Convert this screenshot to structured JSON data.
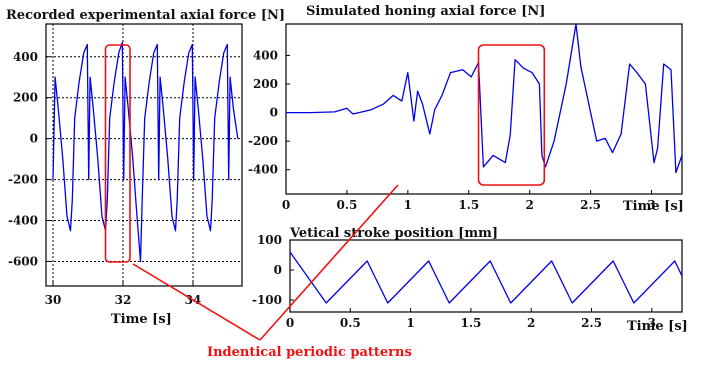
{
  "colors": {
    "series": "#0000ee",
    "highlight": "#ee1111",
    "axis": "#000000",
    "grid": "#000000",
    "background": "#ffffff"
  },
  "annotation": {
    "text": "Indentical periodic patterns"
  },
  "chart_data": [
    {
      "id": "recorded",
      "type": "line",
      "title": "Recorded experimental axial force [N]",
      "xlabel": "Time [s]",
      "ylabel": "",
      "xlim": [
        29.8,
        35.4
      ],
      "ylim": [
        -720,
        560
      ],
      "grid": true,
      "grid_style": "dotted",
      "xticks": [
        30,
        32,
        34
      ],
      "yticks": [
        400,
        200,
        0,
        -200,
        -400,
        -600
      ],
      "highlight_range": [
        31.5,
        32.2
      ],
      "series": [
        {
          "values_note_pattern_period_s": null,
          "x": [
            30.0,
            30.06,
            30.15,
            30.28,
            30.4,
            30.5,
            30.55,
            30.62,
            30.75,
            30.88,
            30.98,
            31.02,
            31.06,
            31.15,
            31.28,
            31.4,
            31.5,
            31.55,
            31.62,
            31.75,
            31.88,
            31.98,
            32.02,
            32.06,
            32.15,
            32.28,
            32.4,
            32.5,
            32.55,
            32.62,
            32.75,
            32.88,
            32.98,
            33.02,
            33.06,
            33.15,
            33.28,
            33.4,
            33.5,
            33.55,
            33.62,
            33.75,
            33.88,
            33.98,
            34.02,
            34.06,
            34.15,
            34.28,
            34.4,
            34.5,
            34.55,
            34.62,
            34.75,
            34.88,
            34.98,
            35.02,
            35.06,
            35.15,
            35.28
          ],
          "y": [
            -200,
            300,
            150,
            -100,
            -380,
            -450,
            -300,
            100,
            280,
            420,
            460,
            -200,
            300,
            150,
            -100,
            -380,
            -450,
            -300,
            100,
            280,
            420,
            470,
            -200,
            300,
            150,
            -100,
            -380,
            -600,
            -300,
            100,
            280,
            420,
            460,
            -200,
            300,
            150,
            -100,
            -380,
            -450,
            -300,
            100,
            280,
            420,
            460,
            -200,
            300,
            150,
            -100,
            -380,
            -450,
            -300,
            100,
            280,
            420,
            460,
            -200,
            300,
            150,
            0
          ]
        }
      ]
    },
    {
      "id": "simulated",
      "type": "line",
      "title": "Simulated honing axial force [N]",
      "xlabel": "Time [s]",
      "ylabel": "",
      "xlim": [
        0,
        3.25
      ],
      "ylim": [
        -570,
        620
      ],
      "grid": false,
      "xticks": [
        0,
        0.5,
        1,
        1.5,
        2,
        2.5,
        3
      ],
      "xtick_labels": [
        "0",
        "0.5",
        "1",
        "1.5",
        "2",
        "2.5",
        "3"
      ],
      "yticks": [
        400,
        200,
        0,
        -200,
        -400
      ],
      "highlight_range": [
        1.58,
        2.12
      ],
      "series": [
        {
          "x": [
            0.0,
            0.2,
            0.4,
            0.5,
            0.55,
            0.7,
            0.8,
            0.88,
            0.95,
            1.0,
            1.05,
            1.08,
            1.12,
            1.18,
            1.22,
            1.28,
            1.35,
            1.45,
            1.52,
            1.58,
            1.62,
            1.7,
            1.8,
            1.84,
            1.88,
            1.95,
            2.02,
            2.08,
            2.1,
            2.13,
            2.2,
            2.3,
            2.38,
            2.42,
            2.48,
            2.55,
            2.62,
            2.68,
            2.75,
            2.82,
            2.88,
            2.95,
            3.02,
            3.05,
            3.1,
            3.16,
            3.2,
            3.25
          ],
          "y": [
            0,
            0,
            5,
            30,
            -10,
            20,
            60,
            120,
            80,
            280,
            -60,
            150,
            60,
            -150,
            20,
            120,
            280,
            300,
            250,
            350,
            -380,
            -300,
            -350,
            -160,
            370,
            310,
            280,
            200,
            -300,
            -380,
            -200,
            200,
            620,
            320,
            80,
            -200,
            -180,
            -280,
            -150,
            340,
            280,
            200,
            -350,
            -250,
            340,
            300,
            -420,
            -300
          ]
        }
      ]
    },
    {
      "id": "stroke",
      "type": "line",
      "title": "Vetical stroke position [mm]",
      "xlabel": "Time [s]",
      "ylabel": "",
      "xlim": [
        0,
        3.25
      ],
      "ylim": [
        -140,
        100
      ],
      "grid": false,
      "xticks": [
        0,
        0.5,
        1,
        1.5,
        2,
        2.5,
        3
      ],
      "xtick_labels": [
        "0",
        "0.5",
        "1",
        "1.5",
        "2",
        "2.5",
        "3"
      ],
      "yticks": [
        100,
        0,
        -100
      ],
      "series": [
        {
          "x": [
            0.0,
            0.3,
            0.64,
            0.81,
            1.15,
            1.32,
            1.66,
            1.83,
            2.17,
            2.34,
            2.68,
            2.85,
            3.19,
            3.25
          ],
          "y": [
            60,
            -110,
            30,
            -110,
            30,
            -110,
            30,
            -110,
            30,
            -110,
            30,
            -110,
            30,
            -20
          ]
        }
      ]
    }
  ]
}
